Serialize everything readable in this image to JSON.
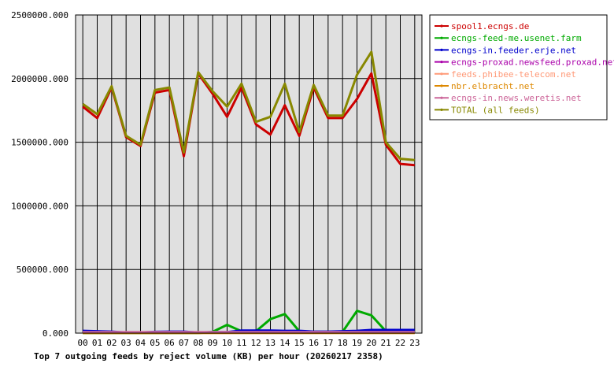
{
  "caption": "Top 7 outgoing feeds by reject volume (KB) per hour (20260217 2358)",
  "chart_data": {
    "type": "line",
    "title": "Top 7 outgoing feeds by reject volume (KB) per hour (20260217 2358)",
    "xlabel": "",
    "ylabel": "",
    "ylim": [
      0,
      2500000
    ],
    "y_ticks": [
      "0.000",
      "500000.000",
      "1000000.000",
      "1500000.000",
      "2000000.000",
      "2500000.000"
    ],
    "x": [
      "00",
      "01",
      "02",
      "03",
      "04",
      "05",
      "06",
      "07",
      "08",
      "09",
      "10",
      "11",
      "12",
      "13",
      "14",
      "15",
      "16",
      "17",
      "18",
      "19",
      "20",
      "21",
      "22",
      "23"
    ],
    "grid": true,
    "legend_position": "right",
    "series": [
      {
        "name": "spool1.ecngs.de",
        "color": "#cc0000",
        "values": [
          1780000,
          1690000,
          1930000,
          1540000,
          1470000,
          1890000,
          1910000,
          1390000,
          2040000,
          1880000,
          1700000,
          1930000,
          1640000,
          1560000,
          1790000,
          1550000,
          1930000,
          1690000,
          1690000,
          1840000,
          2040000,
          1480000,
          1330000,
          1320000
        ]
      },
      {
        "name": "ecngs-feed-me.usenet.farm",
        "color": "#00aa00",
        "values": [
          0,
          0,
          0,
          0,
          0,
          0,
          0,
          0,
          0,
          10000,
          65000,
          15000,
          15000,
          110000,
          150000,
          15000,
          10000,
          10000,
          10000,
          175000,
          140000,
          15000,
          15000,
          15000
        ]
      },
      {
        "name": "ecngs-in.feeder.erje.net",
        "color": "#0000cc",
        "values": [
          18000,
          15000,
          12000,
          5000,
          5000,
          10000,
          12000,
          12000,
          5000,
          8000,
          8000,
          20000,
          20000,
          20000,
          18000,
          18000,
          12000,
          12000,
          15000,
          18000,
          25000,
          25000,
          25000,
          25000
        ]
      },
      {
        "name": "ecngs-proxad.newsfeed.proxad.net",
        "color": "#aa00aa",
        "values": [
          3000,
          3000,
          3000,
          3000,
          3000,
          3000,
          3000,
          3000,
          3000,
          3000,
          3000,
          3000,
          3000,
          3000,
          3000,
          3000,
          3000,
          3000,
          3000,
          3000,
          3000,
          3000,
          3000,
          3000
        ]
      },
      {
        "name": "feeds.phibee-telecom.net",
        "color": "#ff9977",
        "values": [
          2000,
          2000,
          2000,
          2000,
          2000,
          2000,
          2000,
          2000,
          2000,
          2000,
          2000,
          2000,
          2000,
          2000,
          2000,
          2000,
          2000,
          2000,
          2000,
          2000,
          2000,
          2000,
          2000,
          2000
        ]
      },
      {
        "name": "nbr.elbracht.net",
        "color": "#dd8800",
        "values": [
          1000,
          1000,
          1000,
          1000,
          1000,
          1000,
          1000,
          1000,
          1000,
          1000,
          1000,
          1000,
          1000,
          1000,
          1000,
          1000,
          1000,
          1000,
          1000,
          1000,
          1000,
          1000,
          1000,
          1000
        ]
      },
      {
        "name": "ecngs-in.news.weretis.net",
        "color": "#cc6699",
        "values": [
          8000,
          8000,
          8000,
          8000,
          8000,
          8000,
          8000,
          8000,
          8000,
          8000,
          8000,
          8000,
          8000,
          8000,
          8000,
          8000,
          8000,
          8000,
          8000,
          8000,
          8000,
          8000,
          8000,
          8000
        ]
      },
      {
        "name": "TOTAL (all feeds)",
        "color": "#888800",
        "values": [
          1800000,
          1720000,
          1940000,
          1550000,
          1480000,
          1910000,
          1930000,
          1420000,
          2050000,
          1900000,
          1780000,
          1960000,
          1660000,
          1700000,
          1960000,
          1580000,
          1950000,
          1710000,
          1710000,
          2030000,
          2210000,
          1500000,
          1370000,
          1360000
        ]
      }
    ]
  }
}
